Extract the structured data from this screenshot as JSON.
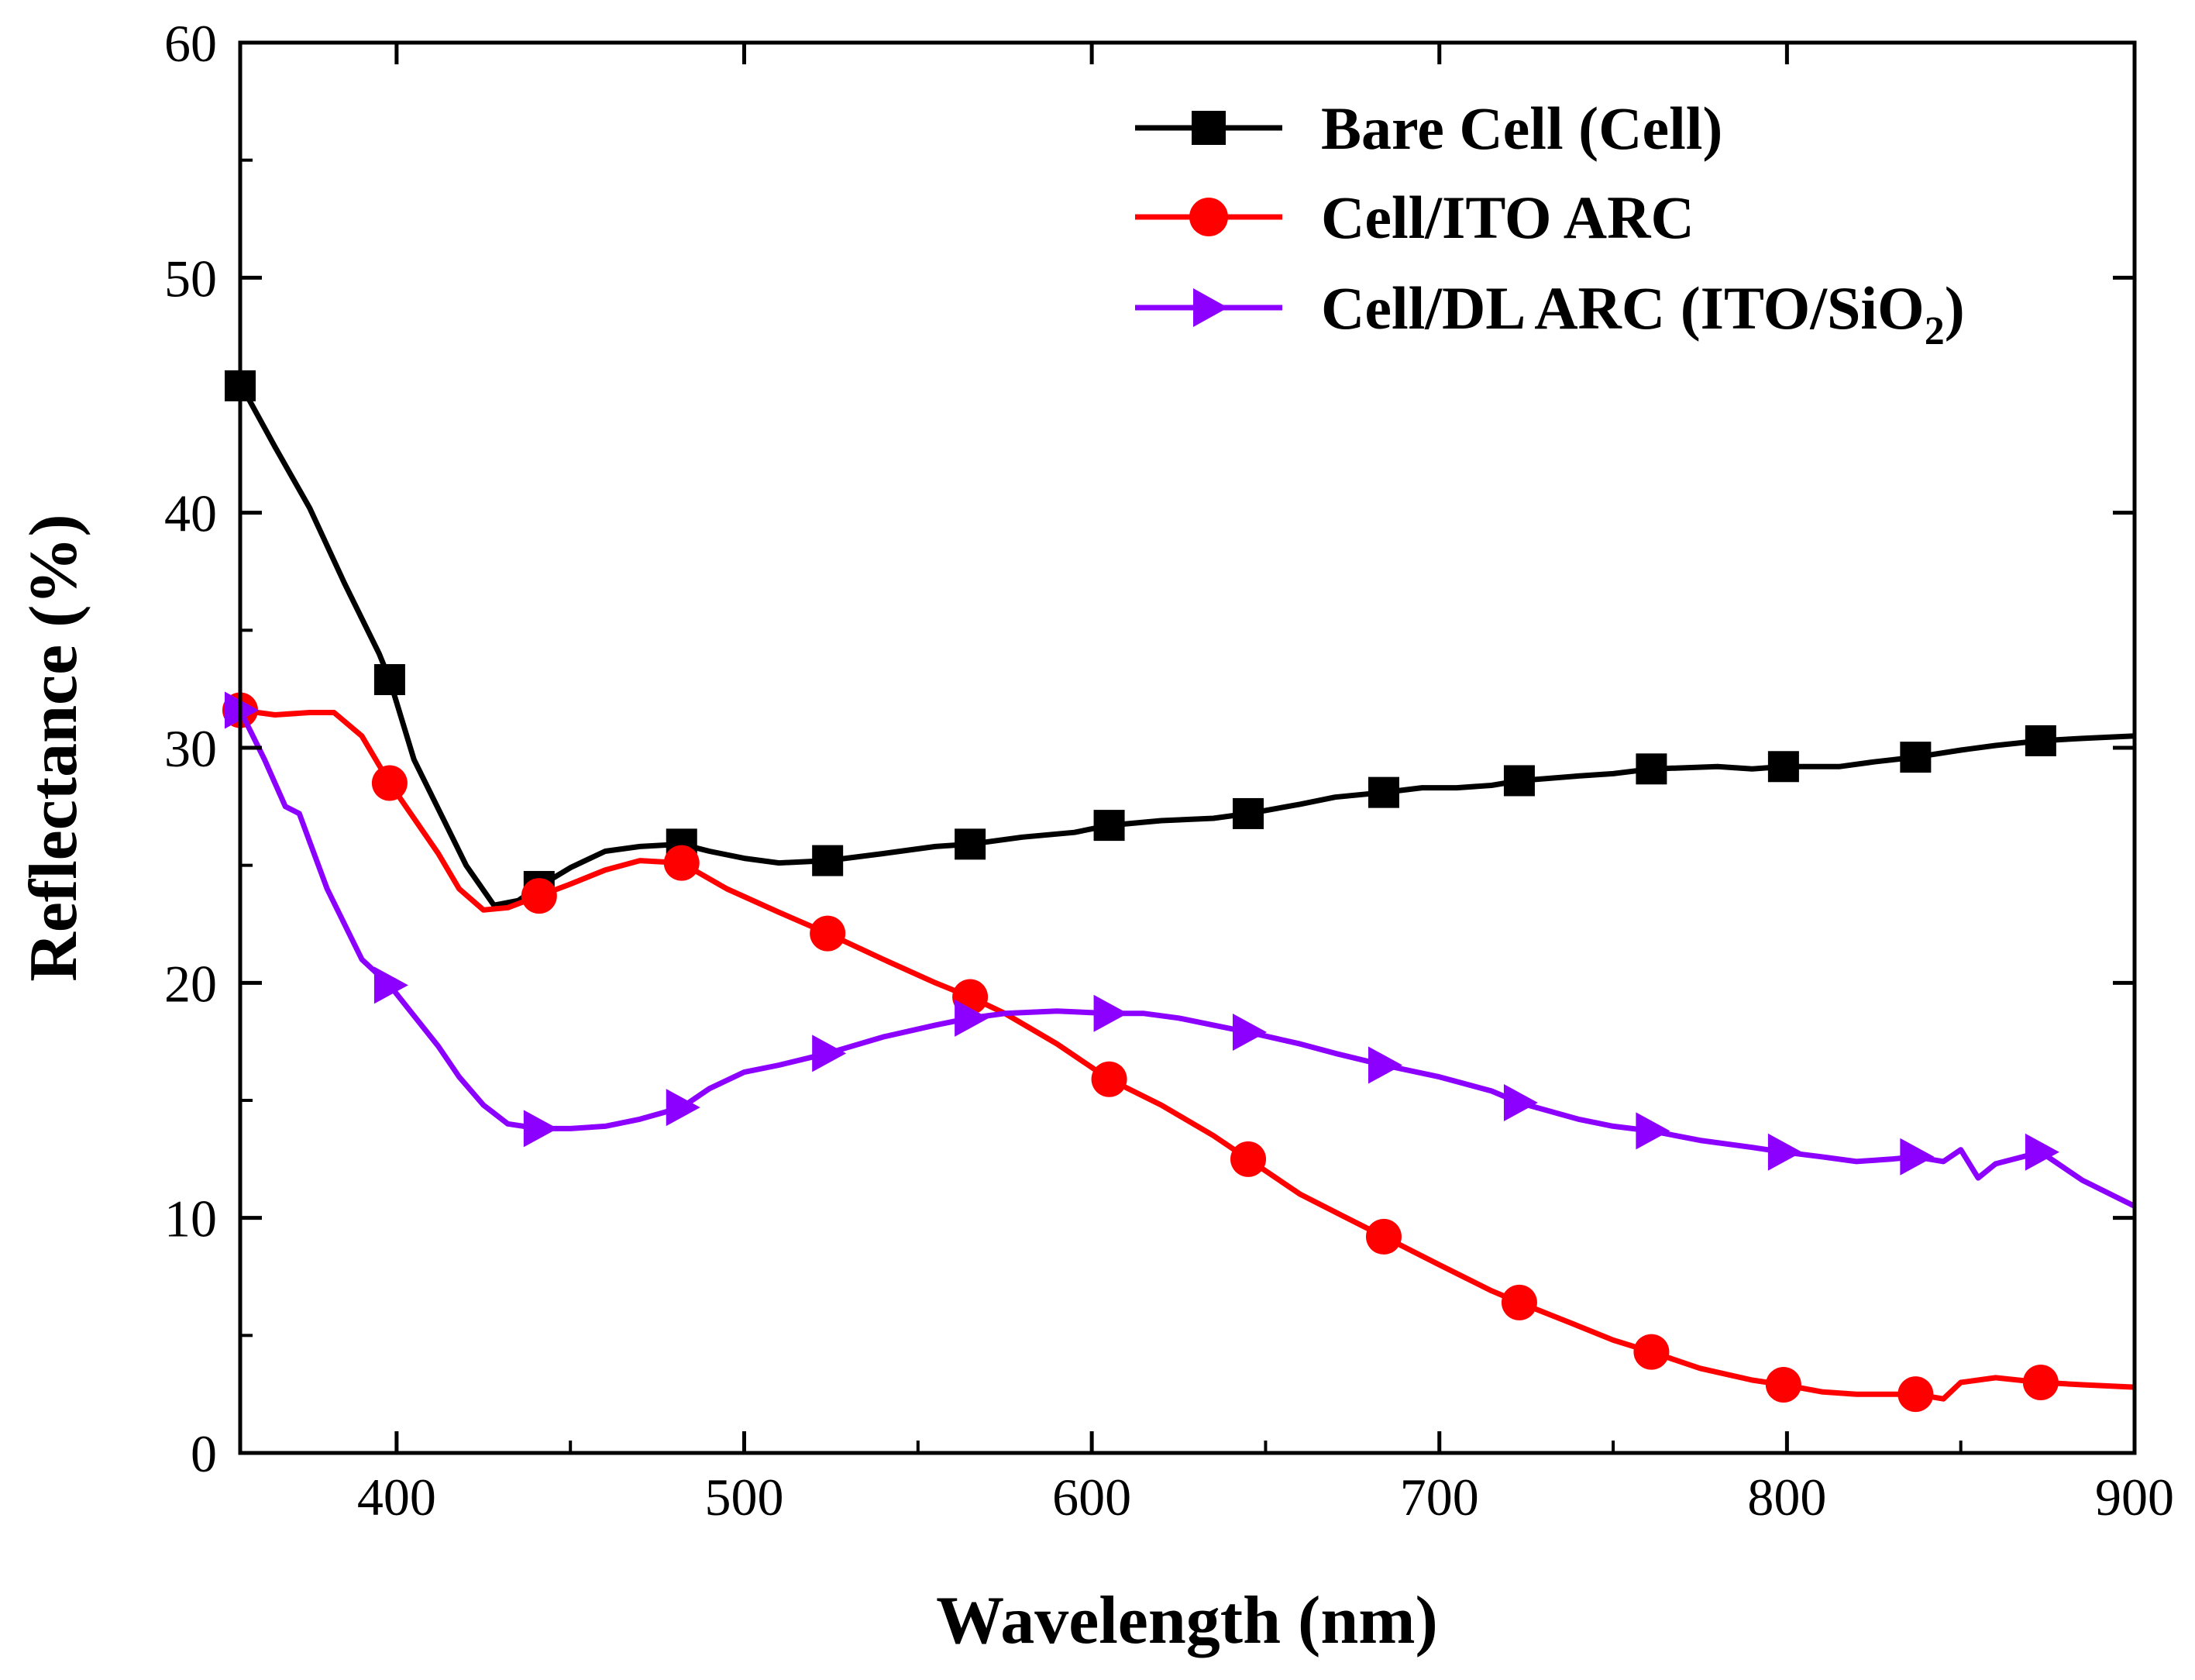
{
  "chart_data": {
    "type": "line",
    "title": "",
    "xlabel": "Wavelength (nm)",
    "ylabel": "Reflectance (%)",
    "xlim": [
      355,
      900
    ],
    "ylim": [
      0,
      60
    ],
    "xticks": [
      400,
      500,
      600,
      700,
      800,
      900
    ],
    "yticks": [
      0,
      10,
      20,
      30,
      40,
      50,
      60
    ],
    "grid": false,
    "legend_position": "top-right",
    "series": [
      {
        "name": "Bare Cell (Cell)",
        "color": "#000000",
        "marker": "square",
        "x": [
          355,
          365,
          375,
          385,
          395,
          398,
          405,
          415,
          420,
          428,
          435,
          441,
          450,
          460,
          470,
          482,
          490,
          500,
          510,
          524,
          540,
          555,
          565,
          580,
          595,
          605,
          620,
          635,
          645,
          660,
          670,
          684,
          695,
          705,
          715,
          723,
          740,
          750,
          761,
          780,
          790,
          799,
          815,
          825,
          837,
          850,
          860,
          873,
          885,
          900
        ],
        "y": [
          45.5,
          42.8,
          40.2,
          37.0,
          34.0,
          32.9,
          29.5,
          26.5,
          25.0,
          23.3,
          23.5,
          24.1,
          24.9,
          25.6,
          25.8,
          25.9,
          25.6,
          25.3,
          25.1,
          25.2,
          25.5,
          25.8,
          25.9,
          26.2,
          26.4,
          26.7,
          26.9,
          27.0,
          27.2,
          27.6,
          27.9,
          28.1,
          28.3,
          28.3,
          28.4,
          28.6,
          28.8,
          28.9,
          29.1,
          29.2,
          29.1,
          29.2,
          29.2,
          29.4,
          29.6,
          29.9,
          30.1,
          30.3,
          30.4,
          30.5
        ],
        "markers_x": [
          355,
          398,
          441,
          482,
          524,
          565,
          605,
          645,
          684,
          723,
          761,
          799,
          837,
          873
        ],
        "markers_y": [
          45.4,
          32.9,
          24.1,
          25.9,
          25.2,
          25.9,
          26.7,
          27.2,
          28.1,
          28.6,
          29.1,
          29.2,
          29.6,
          30.3
        ]
      },
      {
        "name": "Cell/ITO ARC",
        "color": "#ff0000",
        "marker": "circle",
        "x": [
          355,
          365,
          375,
          382,
          390,
          398,
          405,
          412,
          418,
          425,
          432,
          441,
          450,
          460,
          470,
          482,
          495,
          510,
          524,
          540,
          555,
          565,
          575,
          590,
          605,
          620,
          635,
          645,
          660,
          672,
          684,
          700,
          715,
          723,
          740,
          750,
          761,
          775,
          790,
          799,
          810,
          820,
          830,
          837,
          845,
          850,
          860,
          873,
          885,
          900
        ],
        "y": [
          31.6,
          31.4,
          31.5,
          31.5,
          30.5,
          28.5,
          27.0,
          25.5,
          24.0,
          23.1,
          23.2,
          23.7,
          24.2,
          24.8,
          25.2,
          25.1,
          24.0,
          23.0,
          22.1,
          21.0,
          20.0,
          19.4,
          18.7,
          17.4,
          15.9,
          14.8,
          13.5,
          12.5,
          11.0,
          10.1,
          9.2,
          8.0,
          6.9,
          6.4,
          5.4,
          4.8,
          4.3,
          3.6,
          3.1,
          2.9,
          2.6,
          2.5,
          2.5,
          2.5,
          2.3,
          3.0,
          3.2,
          3.0,
          2.9,
          2.8
        ],
        "markers_x": [
          355,
          398,
          441,
          482,
          524,
          565,
          605,
          645,
          684,
          723,
          761,
          799,
          837,
          873
        ],
        "markers_y": [
          31.6,
          28.5,
          23.7,
          25.1,
          22.1,
          19.4,
          15.9,
          12.5,
          9.2,
          6.4,
          4.3,
          2.9,
          2.5,
          3.0
        ]
      },
      {
        "name": "Cell/DL ARC (ITO/SiO2)",
        "color": "#8b00ff",
        "marker": "triangle-right",
        "x": [
          355,
          362,
          368,
          372,
          375,
          380,
          385,
          390,
          398,
          405,
          412,
          418,
          425,
          432,
          441,
          450,
          460,
          470,
          482,
          490,
          500,
          510,
          524,
          540,
          555,
          565,
          575,
          590,
          605,
          615,
          625,
          635,
          645,
          660,
          670,
          684,
          700,
          715,
          723,
          740,
          750,
          761,
          775,
          790,
          799,
          810,
          820,
          830,
          837,
          845,
          850,
          855,
          860,
          873,
          885,
          900
        ],
        "y": [
          31.6,
          29.5,
          27.5,
          27.2,
          26.0,
          24.0,
          22.5,
          21.0,
          19.9,
          18.6,
          17.3,
          16.0,
          14.8,
          14.0,
          13.8,
          13.8,
          13.9,
          14.2,
          14.7,
          15.5,
          16.2,
          16.5,
          17.0,
          17.7,
          18.2,
          18.5,
          18.7,
          18.8,
          18.7,
          18.7,
          18.5,
          18.2,
          17.9,
          17.4,
          17.0,
          16.5,
          16.0,
          15.4,
          14.9,
          14.2,
          13.9,
          13.7,
          13.3,
          13.0,
          12.8,
          12.6,
          12.4,
          12.5,
          12.6,
          12.4,
          12.9,
          11.7,
          12.3,
          12.8,
          11.6,
          10.5
        ],
        "markers_x": [
          355,
          398,
          441,
          482,
          524,
          565,
          605,
          645,
          684,
          723,
          761,
          799,
          837,
          873
        ],
        "markers_y": [
          31.6,
          19.9,
          13.8,
          14.7,
          17.0,
          18.5,
          18.7,
          17.9,
          16.5,
          14.9,
          13.7,
          12.8,
          12.6,
          12.8
        ]
      }
    ]
  },
  "legend": {
    "items": [
      {
        "main": "Bare Cell (Cell)",
        "sub": ""
      },
      {
        "main": "Cell/ITO ARC",
        "sub": ""
      },
      {
        "main": "Cell/DL ARC (ITO/SiO",
        "sub": "2",
        "tail": ")"
      }
    ]
  }
}
